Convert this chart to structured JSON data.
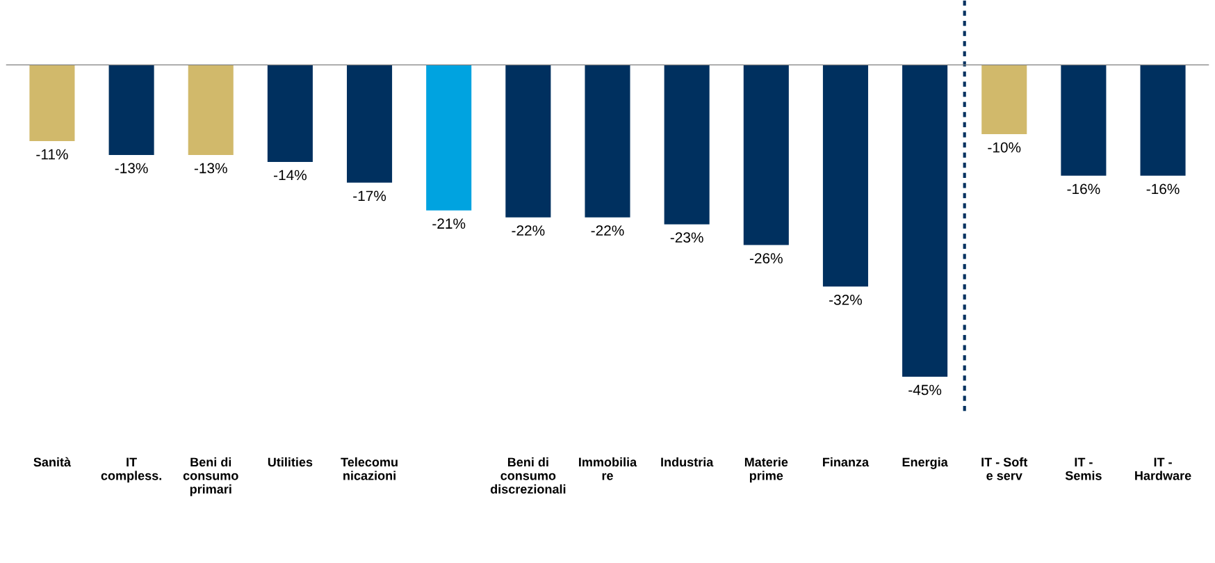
{
  "chart_data": {
    "type": "bar",
    "categories": [
      "Sanità",
      "IT\ncompless.",
      "Beni di\nconsumo\nprimari",
      "Utilities",
      "Telecomu\nnicazioni",
      null,
      "Beni di\nconsumo\ndiscrezionali",
      "Immobilia\nre",
      "Industria",
      "Materie\nprime",
      "Finanza",
      "Energia",
      "IT - Soft\ne serv",
      "IT -\nSemis",
      "IT -\nHardware"
    ],
    "values": [
      -11,
      -13,
      -13,
      -14,
      -17,
      -21,
      -22,
      -22,
      -23,
      -26,
      -32,
      -45,
      -10,
      -16,
      -16
    ],
    "value_labels": [
      "-11%",
      "-13%",
      "-13%",
      "-14%",
      "-17%",
      "-21%",
      "-22%",
      "-22%",
      "-23%",
      "-26%",
      "-32%",
      "-45%",
      "-10%",
      "-16%",
      "-16%"
    ],
    "colors": [
      "#d1b96b",
      "#00305f",
      "#d1b96b",
      "#00305f",
      "#00305f",
      "#00a3e0",
      "#00305f",
      "#00305f",
      "#00305f",
      "#00305f",
      "#00305f",
      "#00305f",
      "#d1b96b",
      "#00305f",
      "#00305f"
    ],
    "grid": false,
    "legend": false
  }
}
